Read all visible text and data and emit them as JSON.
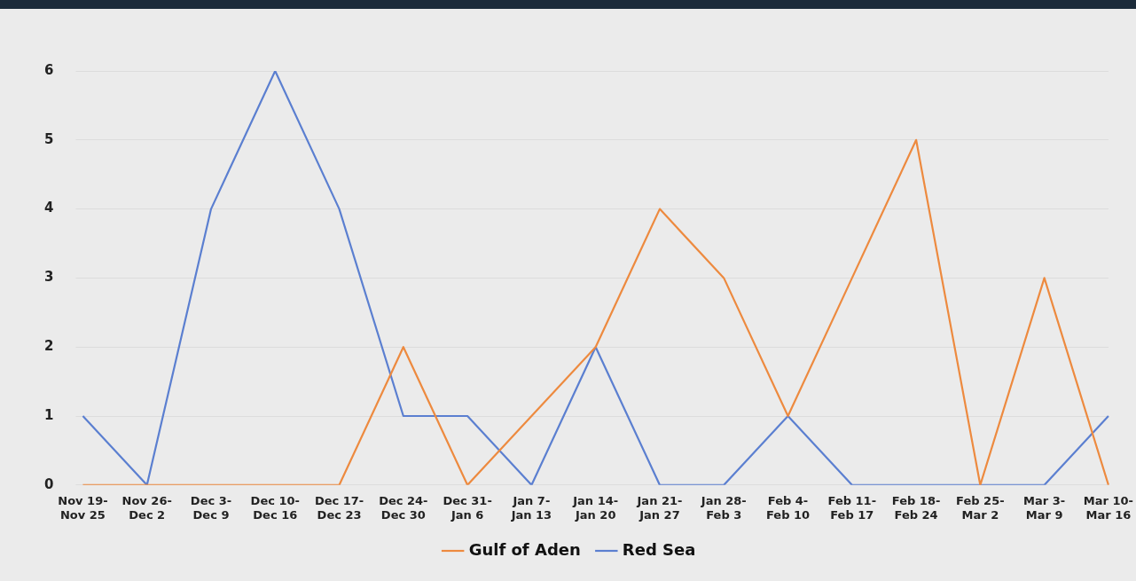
{
  "chart_data": {
    "type": "line",
    "categories": [
      "Nov 19-Nov 25",
      "Nov 26-Dec 2",
      "Dec 3-Dec 9",
      "Dec 10-Dec 16",
      "Dec 17-Dec 23",
      "Dec 24-Dec 30",
      "Dec 31-Jan 6",
      "Jan 7-Jan 13",
      "Jan 14-Jan 20",
      "Jan 21-Jan 27",
      "Jan 28-Feb 3",
      "Feb 4-Feb 10",
      "Feb 11-Feb 17",
      "Feb 18-Feb 24",
      "Feb 25-Mar 2",
      "Mar 3-Mar 9",
      "Mar 10-Mar 16"
    ],
    "series": [
      {
        "name": "Gulf of Aden",
        "color": "#ed8a3f",
        "values": [
          0,
          0,
          0,
          0,
          0,
          2,
          0,
          1,
          2,
          4,
          3,
          1,
          3,
          5,
          0,
          3,
          0
        ]
      },
      {
        "name": "Red Sea",
        "color": "#5b7fd0",
        "values": [
          1,
          0,
          4,
          6,
          4,
          1,
          1,
          0,
          2,
          0,
          0,
          1,
          0,
          0,
          0,
          0,
          1
        ]
      }
    ],
    "ylim": [
      0,
      6
    ],
    "yticks": [
      0,
      1,
      2,
      3,
      4,
      5,
      6
    ],
    "grid": "y",
    "legend": "bottom",
    "marker": "none",
    "line_style": "solid"
  }
}
